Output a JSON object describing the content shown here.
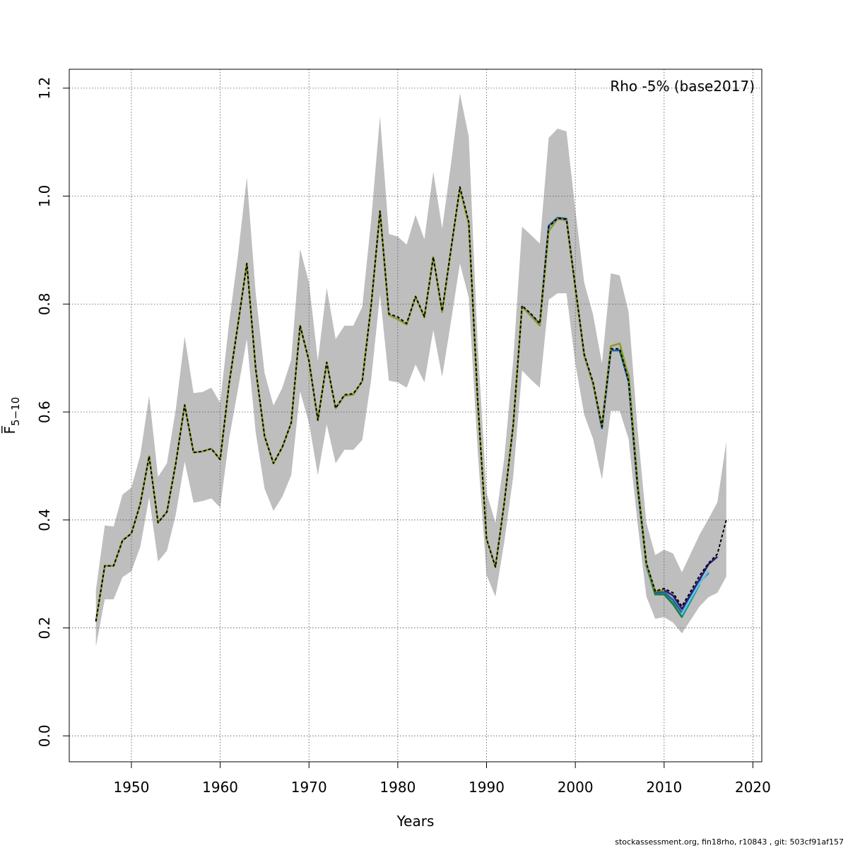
{
  "chart_data": {
    "type": "line",
    "title": "",
    "xlabel": "Years",
    "ylabel": "F̅",
    "ylabel_sub": "5−10",
    "legend": "Rho -5% (base2017)",
    "legend_position": "top-right",
    "xlim": [
      1943,
      2021
    ],
    "ylim": [
      -0.048,
      1.235
    ],
    "x_ticks": [
      1950,
      1960,
      1970,
      1980,
      1990,
      2000,
      2010,
      2020
    ],
    "x_tick_labels": [
      "1950",
      "1960",
      "1970",
      "1980",
      "1990",
      "2000",
      "2010",
      "2020"
    ],
    "y_ticks": [
      0.0,
      0.2,
      0.4,
      0.6,
      0.8,
      1.0,
      1.2
    ],
    "y_tick_labels": [
      "0.0",
      "0.2",
      "0.4",
      "0.6",
      "0.8",
      "1.0",
      "1.2"
    ],
    "grid": true,
    "confidence_band": {
      "color": "#bebebe",
      "x": [
        1946,
        1947,
        1948,
        1949,
        1950,
        1951,
        1952,
        1953,
        1954,
        1955,
        1956,
        1957,
        1958,
        1959,
        1960,
        1961,
        1962,
        1963,
        1964,
        1965,
        1966,
        1967,
        1968,
        1969,
        1970,
        1971,
        1972,
        1973,
        1974,
        1975,
        1976,
        1977,
        1978,
        1979,
        1980,
        1981,
        1982,
        1983,
        1984,
        1985,
        1986,
        1987,
        1988,
        1989,
        1990,
        1991,
        1992,
        1993,
        1994,
        1995,
        1996,
        1997,
        1998,
        1999,
        2000,
        2001,
        2002,
        2003,
        2004,
        2005,
        2006,
        2007,
        2008,
        2009,
        2010,
        2011,
        2012,
        2013,
        2014,
        2015,
        2016,
        2017
      ],
      "upper": [
        0.27,
        0.39,
        0.388,
        0.447,
        0.46,
        0.52,
        0.63,
        0.48,
        0.505,
        0.605,
        0.74,
        0.635,
        0.637,
        0.645,
        0.617,
        0.765,
        0.89,
        1.035,
        0.82,
        0.672,
        0.612,
        0.645,
        0.697,
        0.902,
        0.84,
        0.695,
        0.83,
        0.735,
        0.76,
        0.76,
        0.795,
        0.955,
        1.148,
        0.93,
        0.925,
        0.91,
        0.965,
        0.92,
        1.045,
        0.94,
        1.06,
        1.19,
        1.11,
        0.725,
        0.45,
        0.395,
        0.515,
        0.695,
        0.943,
        0.928,
        0.912,
        1.108,
        1.125,
        1.12,
        0.975,
        0.84,
        0.78,
        0.69,
        0.857,
        0.853,
        0.785,
        0.57,
        0.395,
        0.335,
        0.345,
        0.338,
        0.303,
        0.338,
        0.373,
        0.402,
        0.433,
        0.545
      ],
      "lower": [
        0.165,
        0.253,
        0.253,
        0.294,
        0.305,
        0.35,
        0.442,
        0.323,
        0.343,
        0.41,
        0.508,
        0.432,
        0.435,
        0.44,
        0.423,
        0.55,
        0.642,
        0.735,
        0.562,
        0.458,
        0.417,
        0.443,
        0.483,
        0.638,
        0.58,
        0.483,
        0.577,
        0.505,
        0.53,
        0.53,
        0.548,
        0.66,
        0.818,
        0.658,
        0.655,
        0.645,
        0.688,
        0.655,
        0.752,
        0.665,
        0.768,
        0.875,
        0.812,
        0.528,
        0.298,
        0.258,
        0.36,
        0.48,
        0.677,
        0.66,
        0.645,
        0.808,
        0.82,
        0.82,
        0.69,
        0.595,
        0.55,
        0.475,
        0.602,
        0.602,
        0.55,
        0.395,
        0.258,
        0.217,
        0.22,
        0.21,
        0.19,
        0.215,
        0.24,
        0.257,
        0.265,
        0.295
      ]
    },
    "series": [
      {
        "color": "#000000",
        "dashed": true,
        "x": [
          1946,
          1947,
          1948,
          1949,
          1950,
          1951,
          1952,
          1953,
          1954,
          1955,
          1956,
          1957,
          1958,
          1959,
          1960,
          1961,
          1962,
          1963,
          1964,
          1965,
          1966,
          1967,
          1968,
          1969,
          1970,
          1971,
          1972,
          1973,
          1974,
          1975,
          1976,
          1977,
          1978,
          1979,
          1980,
          1981,
          1982,
          1983,
          1984,
          1985,
          1986,
          1987,
          1988,
          1989,
          1990,
          1991,
          1992,
          1993,
          1994,
          1995,
          1996,
          1997,
          1998,
          1999,
          2000,
          2001,
          2002,
          2003,
          2004,
          2005,
          2006,
          2007,
          2008,
          2009,
          2010,
          2011,
          2012,
          2013,
          2014,
          2015,
          2016,
          2017
        ],
        "values": [
          0.212,
          0.315,
          0.315,
          0.362,
          0.375,
          0.43,
          0.518,
          0.395,
          0.415,
          0.505,
          0.613,
          0.525,
          0.527,
          0.532,
          0.512,
          0.652,
          0.762,
          0.875,
          0.68,
          0.555,
          0.505,
          0.535,
          0.58,
          0.76,
          0.695,
          0.585,
          0.692,
          0.607,
          0.632,
          0.634,
          0.657,
          0.797,
          0.972,
          0.782,
          0.776,
          0.764,
          0.814,
          0.777,
          0.887,
          0.787,
          0.902,
          1.017,
          0.952,
          0.622,
          0.365,
          0.313,
          0.432,
          0.575,
          0.797,
          0.782,
          0.764,
          0.943,
          0.959,
          0.957,
          0.832,
          0.707,
          0.655,
          0.573,
          0.717,
          0.717,
          0.658,
          0.465,
          0.32,
          0.268,
          0.273,
          0.265,
          0.24,
          0.268,
          0.297,
          0.32,
          0.337,
          0.4
        ]
      },
      {
        "color": "#2b1f7a",
        "dashed": false,
        "x": [
          2008,
          2009,
          2010,
          2011,
          2012,
          2013,
          2014,
          2015,
          2016
        ],
        "values": [
          0.318,
          0.266,
          0.27,
          0.26,
          0.235,
          0.262,
          0.29,
          0.318,
          0.332
        ]
      },
      {
        "color": "#1f5fa8",
        "dashed": false,
        "x": [
          1994,
          1995,
          1996,
          1997,
          1998,
          1999,
          2000,
          2001,
          2002,
          2003,
          2004,
          2005,
          2006,
          2007,
          2008,
          2009,
          2010,
          2011,
          2012,
          2013,
          2014,
          2015
        ],
        "values": [
          0.795,
          0.78,
          0.763,
          0.945,
          0.96,
          0.958,
          0.83,
          0.705,
          0.652,
          0.57,
          0.714,
          0.714,
          0.656,
          0.462,
          0.318,
          0.264,
          0.266,
          0.252,
          0.228,
          0.256,
          0.285,
          0.302
        ]
      },
      {
        "color": "#1a9a8a",
        "dashed": false,
        "x": [
          2006,
          2007,
          2008,
          2009,
          2010,
          2011,
          2012,
          2013,
          2014
        ],
        "values": [
          0.662,
          0.468,
          0.315,
          0.262,
          0.263,
          0.246,
          0.22,
          0.25,
          0.281
        ]
      },
      {
        "color": "#66c2e6",
        "dashed": false,
        "x": [
          2012,
          2013,
          2014,
          2015
        ],
        "values": [
          0.226,
          0.255,
          0.283,
          0.305
        ]
      },
      {
        "color": "#1a7f3a",
        "dashed": false,
        "x": [
          2005,
          2006,
          2007,
          2008,
          2009,
          2010,
          2011,
          2012
        ],
        "values": [
          0.712,
          0.668,
          0.47,
          0.318,
          0.262,
          0.262,
          0.244,
          0.22
        ]
      },
      {
        "color": "#8c9a2a",
        "dashed": false,
        "x": [
          1946,
          1947,
          1948,
          1949,
          1950,
          1951,
          1952,
          1953,
          1954,
          1955,
          1956,
          1957,
          1958,
          1959,
          1960,
          1961,
          1962,
          1963,
          1964,
          1965,
          1966,
          1967,
          1968,
          1969,
          1970,
          1971,
          1972,
          1973,
          1974,
          1975,
          1976,
          1977,
          1978,
          1979,
          1980,
          1981,
          1982,
          1983,
          1984,
          1985,
          1986,
          1987,
          1988,
          1989,
          1990,
          1991,
          1992,
          1993,
          1994,
          1995,
          1996,
          1997,
          1998,
          1999,
          2000,
          2001,
          2002,
          2003,
          2004,
          2005,
          2006,
          2007,
          2008,
          2009,
          2010
        ],
        "values": [
          0.212,
          0.315,
          0.315,
          0.362,
          0.375,
          0.43,
          0.518,
          0.395,
          0.415,
          0.505,
          0.613,
          0.525,
          0.527,
          0.532,
          0.512,
          0.652,
          0.762,
          0.875,
          0.68,
          0.555,
          0.505,
          0.535,
          0.58,
          0.76,
          0.695,
          0.585,
          0.692,
          0.607,
          0.63,
          0.632,
          0.657,
          0.797,
          0.972,
          0.78,
          0.772,
          0.762,
          0.814,
          0.775,
          0.887,
          0.785,
          0.902,
          1.014,
          0.948,
          0.622,
          0.365,
          0.313,
          0.432,
          0.575,
          0.795,
          0.778,
          0.76,
          0.935,
          0.958,
          0.955,
          0.83,
          0.705,
          0.652,
          0.575,
          0.722,
          0.727,
          0.665,
          0.47,
          0.318,
          0.268,
          0.27
        ]
      }
    ]
  },
  "footer_text": "stockassessment.org, fin18rho, r10843 , git: 503cf91af157"
}
